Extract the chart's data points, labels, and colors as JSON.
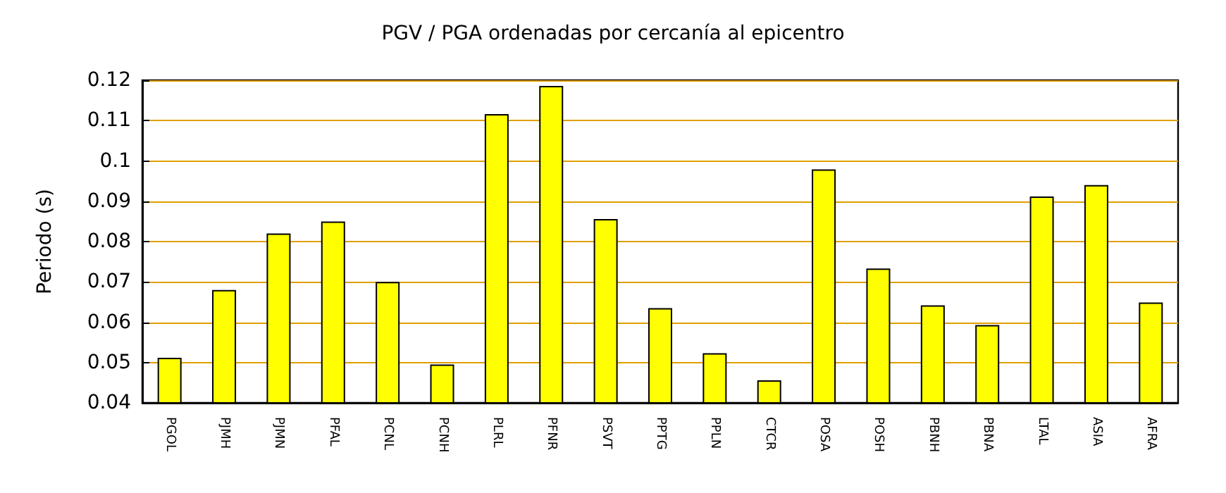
{
  "chart_data": {
    "type": "bar",
    "title": "PGV / PGA ordenadas por cercanía al epicentro",
    "ylabel": "Periodo (s)",
    "categories": [
      "PGOL",
      "PJMH",
      "PJMN",
      "PFAL",
      "PCNL",
      "PCNH",
      "PLRL",
      "PFNR",
      "PSVT",
      "PPTG",
      "PPLN",
      "CTCR",
      "POSA",
      "POSH",
      "PBNH",
      "PBNA",
      "LTAL",
      "ASIA",
      "AFRA"
    ],
    "values": [
      0.0512,
      0.068,
      0.082,
      0.085,
      0.07,
      0.0495,
      0.1116,
      0.1186,
      0.0856,
      0.0635,
      0.0523,
      0.0456,
      0.0979,
      0.0733,
      0.0642,
      0.0593,
      0.0912,
      0.094,
      0.0649
    ],
    "color": "#ffff00",
    "ylim": [
      0.04,
      0.12
    ],
    "yticks": [
      0.04,
      0.05,
      0.06,
      0.07,
      0.08,
      0.09,
      0.1,
      0.11,
      0.12
    ],
    "grid": "y"
  }
}
